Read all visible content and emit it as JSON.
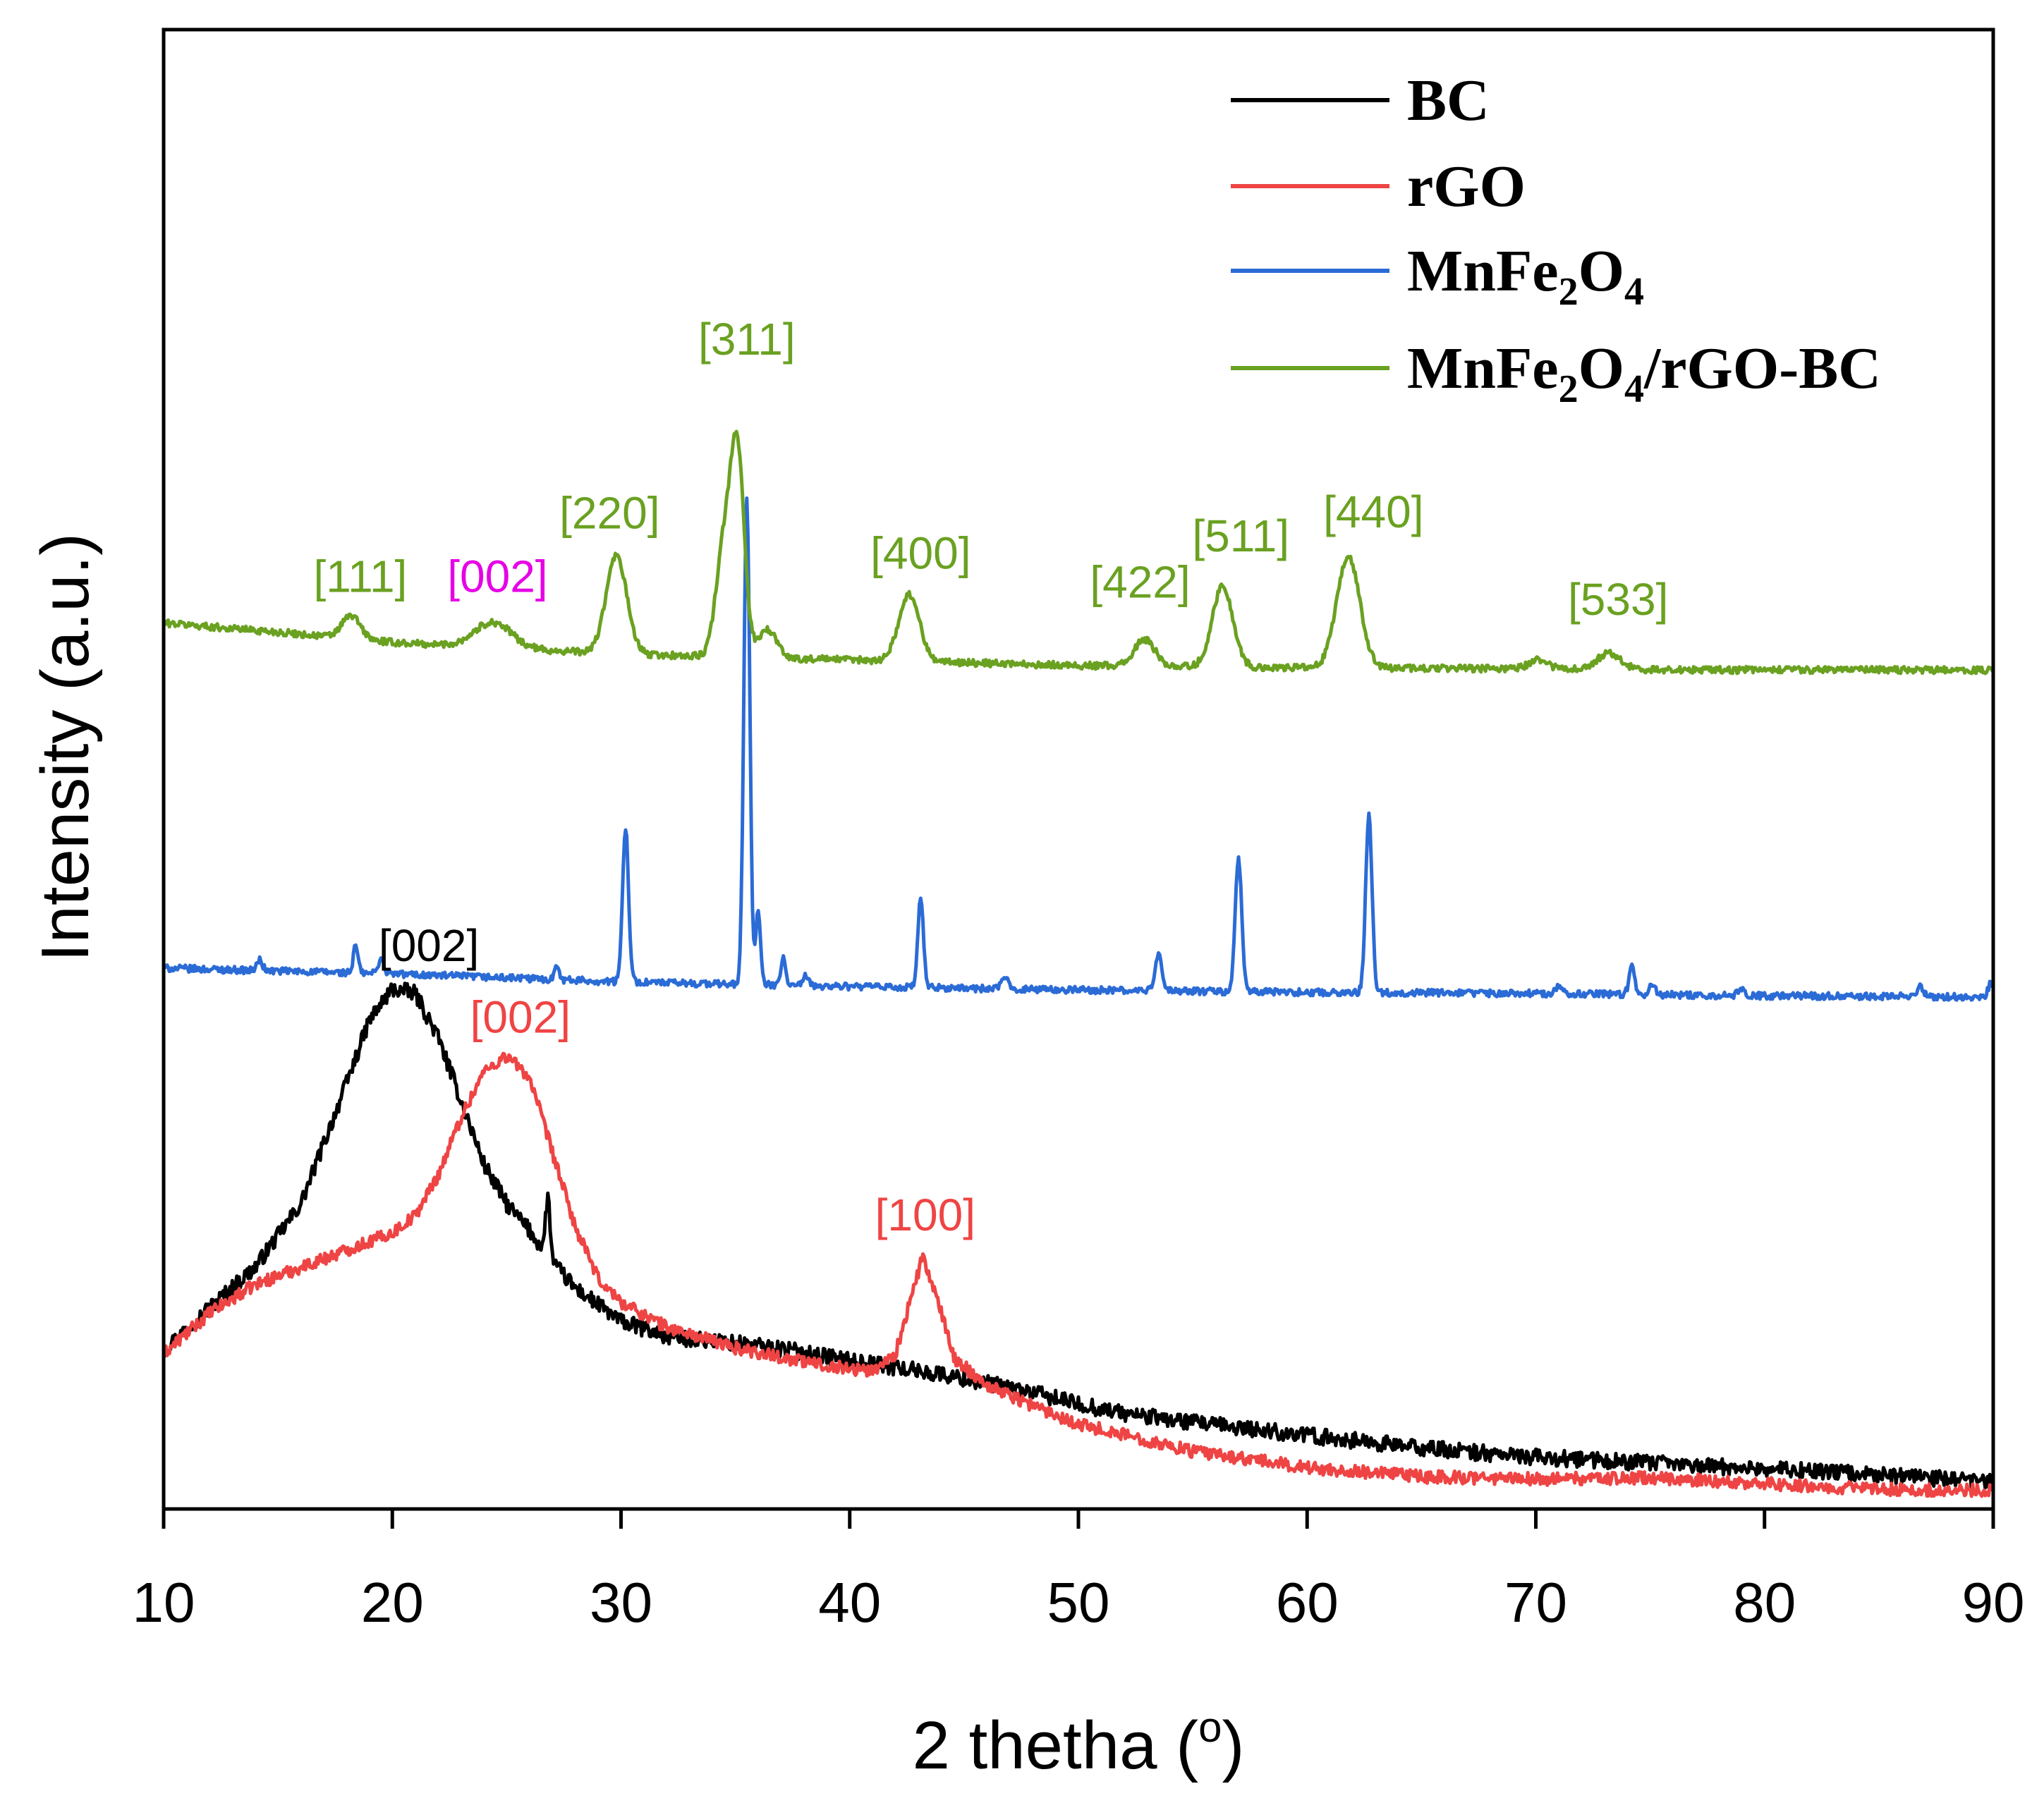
{
  "chart_data": {
    "type": "line",
    "title": "",
    "xlabel": "2 thetha (o)",
    "xlabel_parts": {
      "text": "2 thetha (",
      "sup": "o",
      "close": ")"
    },
    "ylabel": "Intensity (a.u.)",
    "xlim": [
      10,
      90
    ],
    "ylim": [
      0,
      100
    ],
    "xticks": [
      10,
      20,
      30,
      40,
      50,
      60,
      70,
      80,
      90
    ],
    "y_ticks_shown": false,
    "grid": false,
    "legend_position": "top-right",
    "series": [
      {
        "name": "BC",
        "legend": [
          {
            "t": "BC"
          }
        ],
        "color": "#000000",
        "baseline": [
          [
            10,
            13.8
          ],
          [
            12,
            17.5
          ],
          [
            14,
            21.0
          ],
          [
            16,
            26.5
          ],
          [
            18,
            37.0
          ],
          [
            19,
            42.5
          ],
          [
            20,
            45.2
          ],
          [
            21,
            44.8
          ],
          [
            22,
            41.0
          ],
          [
            23,
            35.5
          ],
          [
            24,
            30.0
          ],
          [
            25,
            26.5
          ],
          [
            26,
            24.2
          ],
          [
            27,
            21.4
          ],
          [
            28,
            19.2
          ],
          [
            30,
            16.3
          ],
          [
            32,
            15.0
          ],
          [
            34,
            14.6
          ],
          [
            36,
            14.2
          ],
          [
            38,
            13.6
          ],
          [
            40,
            12.9
          ],
          [
            42,
            12.3
          ],
          [
            44,
            11.7
          ],
          [
            46,
            10.9
          ],
          [
            48,
            10.1
          ],
          [
            50,
            9.1
          ],
          [
            52,
            8.3
          ],
          [
            55,
            7.5
          ],
          [
            60,
            6.4
          ],
          [
            65,
            5.3
          ],
          [
            70,
            4.5
          ],
          [
            75,
            4.0
          ],
          [
            80,
            3.5
          ],
          [
            85,
            3.0
          ],
          [
            90,
            2.3
          ]
        ],
        "spikes": [
          [
            26.8,
            5.0,
            0.1
          ]
        ],
        "noise": 0.7
      },
      {
        "name": "rGO",
        "legend": [
          {
            "t": "rGO"
          }
        ],
        "color": "#ef4444",
        "baseline": [
          [
            10,
            13.5
          ],
          [
            12,
            17.0
          ],
          [
            14,
            19.5
          ],
          [
            16,
            21.0
          ],
          [
            18,
            22.5
          ],
          [
            20,
            24.0
          ],
          [
            21,
            25.5
          ],
          [
            22,
            29.0
          ],
          [
            23,
            34.0
          ],
          [
            24,
            38.0
          ],
          [
            25,
            39.4
          ],
          [
            26,
            37.5
          ],
          [
            27,
            31.0
          ],
          [
            28,
            24.5
          ],
          [
            29,
            20.0
          ],
          [
            30,
            18.0
          ],
          [
            32,
            15.8
          ],
          [
            35,
            14.0
          ],
          [
            38,
            12.8
          ],
          [
            40,
            12.2
          ],
          [
            41,
            12.0
          ],
          [
            42,
            13.5
          ],
          [
            42.5,
            17.0
          ],
          [
            43.2,
            22.0
          ],
          [
            44,
            17.0
          ],
          [
            44.6,
            13.0
          ],
          [
            46,
            10.8
          ],
          [
            48,
            9.0
          ],
          [
            50,
            7.4
          ],
          [
            55,
            5.0
          ],
          [
            60,
            3.6
          ],
          [
            65,
            2.8
          ],
          [
            70,
            2.6
          ],
          [
            75,
            2.7
          ],
          [
            80,
            2.2
          ],
          [
            85,
            1.7
          ],
          [
            90,
            1.6
          ]
        ],
        "spikes": [],
        "noise": 0.55
      },
      {
        "name": "MnFe2O4",
        "legend": [
          {
            "t": "MnFe"
          },
          {
            "t": "2",
            "sub": true
          },
          {
            "t": "O"
          },
          {
            "t": "4",
            "sub": true
          }
        ],
        "color": "#2b6bd6",
        "baseline": [
          [
            10,
            47.0
          ],
          [
            20,
            46.5
          ],
          [
            30,
            45.8
          ],
          [
            40,
            45.4
          ],
          [
            50,
            45.1
          ],
          [
            60,
            44.9
          ],
          [
            70,
            44.8
          ],
          [
            80,
            44.6
          ],
          [
            90,
            44.5
          ]
        ],
        "spikes": [
          [
            14.2,
            0.9,
            0.12
          ],
          [
            18.4,
            2.4,
            0.1
          ],
          [
            19.5,
            1.3,
            0.12
          ],
          [
            27.2,
            1.4,
            0.1
          ],
          [
            30.2,
            13.5,
            0.13
          ],
          [
            35.5,
            42.0,
            0.13
          ],
          [
            36.0,
            6.5,
            0.1
          ],
          [
            37.1,
            2.4,
            0.1
          ],
          [
            38.1,
            0.9,
            0.1
          ],
          [
            43.1,
            7.8,
            0.12
          ],
          [
            46.8,
            0.9,
            0.15
          ],
          [
            53.5,
            3.3,
            0.14
          ],
          [
            57.0,
            11.6,
            0.14
          ],
          [
            62.7,
            15.4,
            0.14
          ],
          [
            71.0,
            0.6,
            0.15
          ],
          [
            74.2,
            2.5,
            0.12
          ],
          [
            75.1,
            0.9,
            0.12
          ],
          [
            79.0,
            0.6,
            0.15
          ],
          [
            86.8,
            0.8,
            0.15
          ],
          [
            89.9,
            1.2,
            0.12
          ]
        ],
        "noise": 0.3
      },
      {
        "name": "MnFe2O4/rGO-BC",
        "legend": [
          {
            "t": "MnFe"
          },
          {
            "t": "2",
            "sub": true
          },
          {
            "t": "O"
          },
          {
            "t": "4",
            "sub": true
          },
          {
            "t": "/rGO-BC"
          }
        ],
        "color": "#6aa121",
        "baseline": [
          [
            10,
            77.0
          ],
          [
            15,
            76.2
          ],
          [
            20,
            75.3
          ],
          [
            25,
            74.8
          ],
          [
            30,
            74.3
          ],
          [
            35,
            74.0
          ],
          [
            40,
            73.8
          ],
          [
            50,
            73.3
          ],
          [
            60,
            73.1
          ],
          [
            70,
            73.0
          ],
          [
            80,
            72.9
          ],
          [
            90,
            72.9
          ]
        ],
        "spikes": [
          [
            18.2,
            2.0,
            0.4
          ],
          [
            24.4,
            2.2,
            0.8
          ],
          [
            29.8,
            8.5,
            0.45
          ],
          [
            34.5,
            9.5,
            0.35
          ],
          [
            35.1,
            17.0,
            0.3
          ],
          [
            36.4,
            2.5,
            0.4
          ],
          [
            42.6,
            5.8,
            0.45
          ],
          [
            52.9,
            2.3,
            0.45
          ],
          [
            56.3,
            7.0,
            0.45
          ],
          [
            61.8,
            9.7,
            0.5
          ],
          [
            70.1,
            0.8,
            0.4
          ],
          [
            73.2,
            1.4,
            0.5
          ]
        ],
        "noise": 0.3
      }
    ],
    "annotations": [
      {
        "text": "[111]",
        "x": 18.6,
        "y": 79.7,
        "color": "#6aa121"
      },
      {
        "text": "[002]",
        "x": 24.6,
        "y": 79.7,
        "color": "#e600e6"
      },
      {
        "text": "[220]",
        "x": 29.5,
        "y": 85.2,
        "color": "#6aa121"
      },
      {
        "text": "[311]",
        "x": 35.5,
        "y": 100.3,
        "color": "#6aa121"
      },
      {
        "text": "[400]",
        "x": 43.1,
        "y": 81.7,
        "color": "#6aa121"
      },
      {
        "text": "[422]",
        "x": 52.7,
        "y": 79.2,
        "color": "#6aa121"
      },
      {
        "text": "[511]",
        "x": 57.1,
        "y": 83.2,
        "color": "#6aa121"
      },
      {
        "text": "[440]",
        "x": 62.9,
        "y": 85.3,
        "color": "#6aa121"
      },
      {
        "text": "[533]",
        "x": 73.6,
        "y": 77.7,
        "color": "#6aa121"
      },
      {
        "text": "[002]",
        "x": 21.6,
        "y": 47.6,
        "color": "#000000"
      },
      {
        "text": "[002]",
        "x": 25.6,
        "y": 41.4,
        "color": "#ef4444"
      },
      {
        "text": "[100]",
        "x": 43.3,
        "y": 24.2,
        "color": "#ef4444"
      }
    ]
  }
}
